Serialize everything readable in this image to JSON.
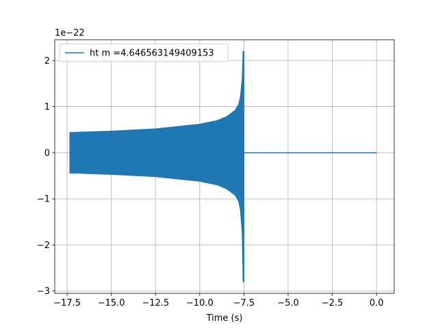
{
  "chart_data": {
    "type": "line",
    "xlabel": "Time (s)",
    "ylabel": "",
    "y_offset_text": "1e−22",
    "xlim": [
      -18.2,
      1.0
    ],
    "ylim": [
      -3.05,
      2.45
    ],
    "x_ticks": [
      {
        "value": -17.5,
        "label": "−17.5"
      },
      {
        "value": -15.0,
        "label": "−15.0"
      },
      {
        "value": -12.5,
        "label": "−12.5"
      },
      {
        "value": -10.0,
        "label": "−10.0"
      },
      {
        "value": -7.5,
        "label": "−7.5"
      },
      {
        "value": -5.0,
        "label": "−5.0"
      },
      {
        "value": -2.5,
        "label": "−2.5"
      },
      {
        "value": 0.0,
        "label": "0.0"
      }
    ],
    "y_ticks": [
      {
        "value": 2,
        "label": "2"
      },
      {
        "value": 1,
        "label": "1"
      },
      {
        "value": 0,
        "label": "0"
      },
      {
        "value": -1,
        "label": "−1"
      },
      {
        "value": -2,
        "label": "−2"
      },
      {
        "value": -3,
        "label": "−3"
      }
    ],
    "grid": true,
    "legend_position": "top-left",
    "series": [
      {
        "name": "ht m =4.646563149409153",
        "color": "#1f77b4",
        "envelope": {
          "x": [
            -17.35,
            -15.0,
            -12.5,
            -10.0,
            -9.0,
            -8.5,
            -8.0,
            -7.8,
            -7.7,
            -7.6,
            -7.55,
            -7.5
          ],
          "upper": [
            0.44,
            0.47,
            0.52,
            0.62,
            0.7,
            0.78,
            0.92,
            1.05,
            1.22,
            1.6,
            2.2,
            2.2
          ],
          "lower": [
            -0.44,
            -0.47,
            -0.52,
            -0.62,
            -0.7,
            -0.78,
            -0.92,
            -1.05,
            -1.25,
            -1.75,
            -2.8,
            -2.8
          ]
        },
        "flat": {
          "x": [
            -7.5,
            0.0
          ],
          "y": [
            0.0,
            0.0
          ]
        }
      }
    ]
  }
}
